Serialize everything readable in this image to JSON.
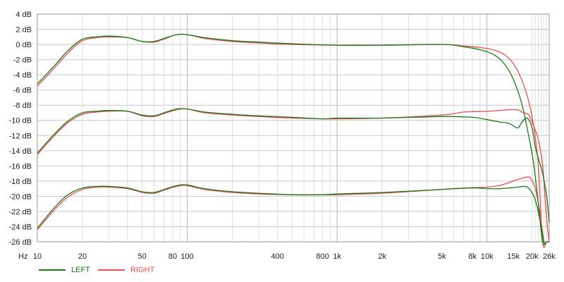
{
  "chart_data": {
    "type": "line",
    "x_scale": "log",
    "x_unit_label": "Hz",
    "xlim": [
      10,
      26000
    ],
    "ylim": [
      -26,
      4
    ],
    "y_ticks": [
      4,
      2,
      0,
      -2,
      -4,
      -6,
      -8,
      -10,
      -12,
      -14,
      -16,
      -18,
      -20,
      -22,
      -24,
      -26
    ],
    "y_tick_labels": [
      "4 dB",
      "2 dB",
      "0 dB",
      "-2 dB",
      "-4 dB",
      "-6 dB",
      "-8 dB",
      "-10 dB",
      "-12 dB",
      "-14 dB",
      "-16 dB",
      "-18 dB",
      "-20 dB",
      "-22 dB",
      "-24 dB",
      "-26 dB"
    ],
    "x_ticks": [
      10,
      20,
      50,
      80,
      100,
      400,
      800,
      1000,
      2000,
      5000,
      8000,
      10000,
      15000,
      20000,
      26000
    ],
    "x_tick_labels": [
      "10",
      "20",
      "50",
      "80",
      "100",
      "400",
      "800",
      "1k",
      "2k",
      "5k",
      "8k",
      "10k",
      "15k",
      "20k",
      "26k"
    ],
    "grid": true,
    "legend_position": "bottom-left",
    "series": [
      {
        "name": "LEFT",
        "group": 0,
        "color": "#1a7a1a",
        "x": [
          10,
          13,
          16,
          20,
          25,
          30,
          40,
          50,
          60,
          70,
          85,
          100,
          130,
          200,
          300,
          500,
          1000,
          2000,
          5000,
          7000,
          9000,
          11000,
          13000,
          15000,
          17000,
          19000,
          20500,
          22000,
          23500,
          25000,
          26000
        ],
        "y": [
          -5.2,
          -2.8,
          -0.8,
          0.7,
          1.0,
          1.1,
          0.9,
          0.4,
          0.4,
          0.8,
          1.3,
          1.3,
          0.9,
          0.5,
          0.3,
          0.1,
          -0.1,
          -0.1,
          0.0,
          -0.3,
          -0.7,
          -1.3,
          -2.5,
          -4.6,
          -7.7,
          -12.1,
          -15.8,
          -21.0,
          -26.0,
          -26.0,
          -26.0
        ]
      },
      {
        "name": "RIGHT",
        "group": 0,
        "color": "#e85050",
        "x": [
          10,
          13,
          16,
          20,
          25,
          30,
          40,
          50,
          60,
          70,
          85,
          100,
          130,
          200,
          300,
          500,
          1000,
          2000,
          5000,
          7000,
          9000,
          11000,
          13000,
          15000,
          17000,
          19000,
          20500,
          22000,
          23500,
          25000,
          26000
        ],
        "y": [
          -5.5,
          -3.1,
          -1.1,
          0.5,
          0.9,
          1.0,
          0.9,
          0.4,
          0.3,
          0.7,
          1.3,
          1.3,
          0.8,
          0.4,
          0.2,
          0.0,
          -0.1,
          -0.1,
          0.0,
          -0.2,
          -0.4,
          -0.7,
          -1.3,
          -2.5,
          -4.6,
          -7.5,
          -10.8,
          -16.0,
          -26.0,
          -26.0,
          -26.0
        ]
      },
      {
        "name": "LEFT",
        "group": 1,
        "color": "#1a7a1a",
        "x": [
          10,
          13,
          16,
          20,
          25,
          30,
          40,
          50,
          60,
          70,
          85,
          100,
          130,
          200,
          300,
          500,
          800,
          1000,
          2000,
          5000,
          8000,
          10000,
          12000,
          14000,
          16000,
          17000,
          18500,
          20000,
          21000,
          22000,
          23500,
          25000,
          26000
        ],
        "y": [
          -14.3,
          -11.8,
          -10.1,
          -9.0,
          -8.8,
          -8.7,
          -8.8,
          -9.3,
          -9.4,
          -9.0,
          -8.5,
          -8.5,
          -8.9,
          -9.2,
          -9.4,
          -9.6,
          -9.8,
          -9.7,
          -9.7,
          -9.5,
          -9.6,
          -9.9,
          -10.2,
          -10.4,
          -11.0,
          -10.3,
          -9.7,
          -11.0,
          -13.5,
          -15.0,
          -17.0,
          -20.0,
          -23.5
        ]
      },
      {
        "name": "RIGHT",
        "group": 1,
        "color": "#e85050",
        "x": [
          10,
          13,
          16,
          20,
          25,
          30,
          40,
          50,
          60,
          70,
          85,
          100,
          130,
          200,
          300,
          500,
          800,
          1000,
          2000,
          5000,
          7000,
          10000,
          12000,
          14000,
          16000,
          17500,
          19000,
          20500,
          22000,
          23500,
          25000,
          26000
        ],
        "y": [
          -14.5,
          -12.0,
          -10.3,
          -9.2,
          -8.9,
          -8.8,
          -8.8,
          -9.4,
          -9.5,
          -9.1,
          -8.6,
          -8.5,
          -9.0,
          -9.3,
          -9.5,
          -9.7,
          -9.8,
          -9.8,
          -9.7,
          -9.3,
          -8.9,
          -8.8,
          -8.7,
          -8.6,
          -8.6,
          -9.0,
          -9.3,
          -10.8,
          -12.5,
          -16.0,
          -23.0,
          -26.0
        ]
      },
      {
        "name": "LEFT",
        "group": 2,
        "color": "#1a7a1a",
        "x": [
          10,
          13,
          16,
          20,
          25,
          30,
          40,
          50,
          60,
          70,
          85,
          100,
          130,
          200,
          300,
          500,
          800,
          1000,
          2000,
          5000,
          8000,
          10000,
          12000,
          14000,
          16000,
          18000,
          19500,
          21000,
          22500,
          24000,
          25000,
          26000
        ],
        "y": [
          -24.2,
          -21.5,
          -19.8,
          -18.9,
          -18.7,
          -18.7,
          -18.9,
          -19.4,
          -19.5,
          -19.1,
          -18.6,
          -18.5,
          -19.0,
          -19.4,
          -19.6,
          -19.8,
          -19.8,
          -19.7,
          -19.5,
          -19.1,
          -18.9,
          -19.0,
          -19.0,
          -18.9,
          -18.8,
          -18.7,
          -19.2,
          -20.5,
          -23.0,
          -26.0,
          -26.0,
          -26.0
        ]
      },
      {
        "name": "RIGHT",
        "group": 2,
        "color": "#e85050",
        "x": [
          10,
          13,
          16,
          20,
          25,
          30,
          40,
          50,
          60,
          70,
          85,
          100,
          130,
          200,
          300,
          500,
          800,
          1000,
          2000,
          5000,
          7000,
          10000,
          12000,
          14000,
          16000,
          18000,
          19500,
          21000,
          22500,
          24000,
          25000,
          26000
        ],
        "y": [
          -24.4,
          -21.8,
          -20.1,
          -19.1,
          -18.8,
          -18.8,
          -19.0,
          -19.5,
          -19.6,
          -19.2,
          -18.7,
          -18.6,
          -19.1,
          -19.5,
          -19.7,
          -19.8,
          -19.8,
          -19.8,
          -19.6,
          -19.1,
          -18.9,
          -18.8,
          -18.6,
          -18.2,
          -17.8,
          -17.5,
          -17.6,
          -19.0,
          -22.0,
          -26.0,
          -26.0,
          -26.0
        ]
      }
    ]
  },
  "legend": [
    {
      "label": "LEFT",
      "color": "#1a7a1a"
    },
    {
      "label": "RIGHT",
      "color": "#e85050"
    }
  ]
}
